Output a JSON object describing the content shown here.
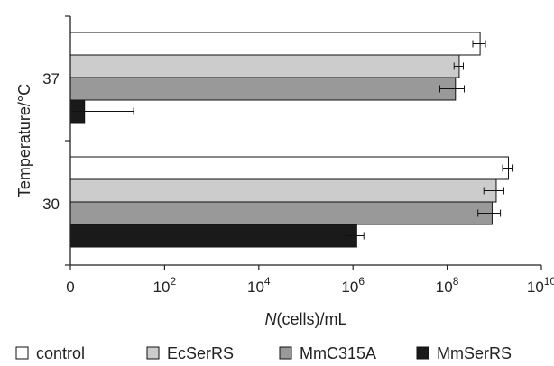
{
  "chart_data": {
    "type": "bar",
    "orientation": "horizontal",
    "x_scale": "log10",
    "xlim": [
      1,
      10000000000
    ],
    "xlabel": {
      "italic": "N",
      "rest": "(cells)/mL"
    },
    "ylabel": "Temperature/°C",
    "x_ticks": [
      {
        "value": 1,
        "label": "0",
        "sup": ""
      },
      {
        "value": 100,
        "label": "10",
        "sup": "2"
      },
      {
        "value": 10000,
        "label": "10",
        "sup": "4"
      },
      {
        "value": 1000000,
        "label": "10",
        "sup": "6"
      },
      {
        "value": 100000000,
        "label": "10",
        "sup": "8"
      },
      {
        "value": 10000000000,
        "label": "10",
        "sup": "10"
      }
    ],
    "categories": [
      "37",
      "30"
    ],
    "legend_position": "bottom",
    "series": [
      {
        "name": "control",
        "color": "#ffffff",
        "values": [
          500000000,
          2000000000
        ],
        "errors": [
          150000000,
          500000000
        ]
      },
      {
        "name": "EcSerRS",
        "color": "#cccccc",
        "values": [
          180000000,
          1100000000
        ],
        "errors": [
          40000000,
          500000000
        ]
      },
      {
        "name": "MmC315A",
        "color": "#999999",
        "values": [
          150000000,
          900000000
        ],
        "errors": [
          80000000,
          450000000
        ]
      },
      {
        "name": "MmSerRS",
        "color": "#1a1a1a",
        "values": [
          2,
          1200000
        ],
        "errors": [
          20,
          500000
        ]
      }
    ]
  }
}
